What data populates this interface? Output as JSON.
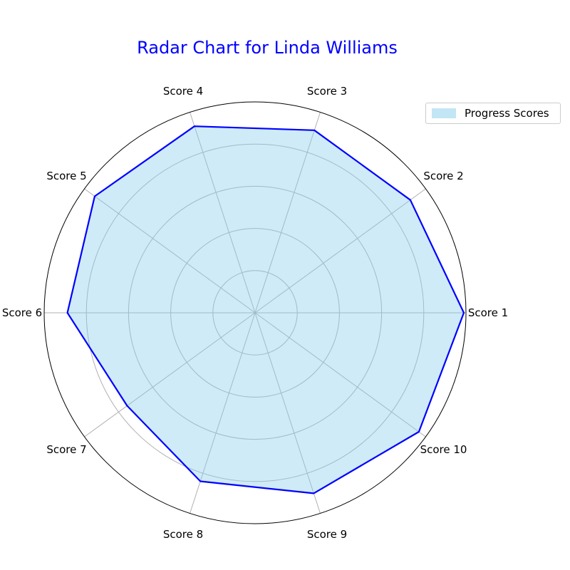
{
  "chart_data": {
    "type": "radar",
    "title": "Radar Chart for Linda Williams",
    "categories": [
      "Score 1",
      "Score 2",
      "Score 3",
      "Score 4",
      "Score 5",
      "Score 6",
      "Score 7",
      "Score 8",
      "Score 9",
      "Score 10"
    ],
    "series": [
      {
        "name": "Progress Scores",
        "values": [
          99,
          91,
          91,
          93,
          94,
          89,
          75,
          84,
          90,
          96
        ]
      }
    ],
    "rmax": 100,
    "grid": true,
    "legend_position": "top-right"
  },
  "colors": {
    "title": "#0000ff",
    "line": "#0000ff",
    "fill": "#87ceeb",
    "grid": "#b0b0b0",
    "frame": "#000000"
  }
}
